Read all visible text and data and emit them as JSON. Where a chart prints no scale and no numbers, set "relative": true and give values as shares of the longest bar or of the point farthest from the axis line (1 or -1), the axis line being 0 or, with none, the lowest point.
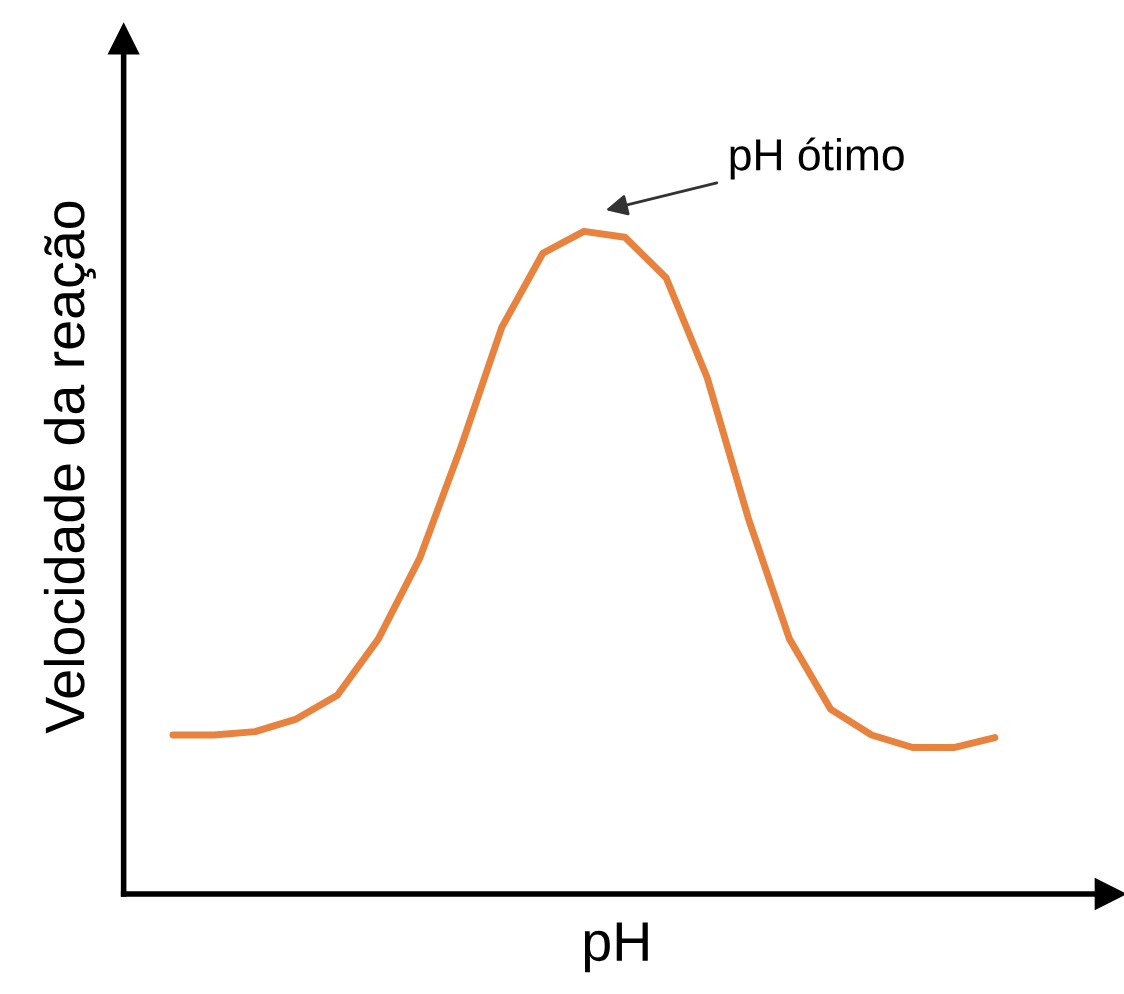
{
  "chart_data": {
    "type": "line",
    "relative": true,
    "xlabel": "pH",
    "ylabel": "Velocidade da reação",
    "categories": [
      null,
      null,
      null,
      null,
      null,
      null,
      null,
      null,
      null,
      null,
      null,
      null,
      null,
      null,
      null,
      null,
      null,
      null,
      null,
      null,
      null
    ],
    "series": [
      {
        "color": "#e8823f",
        "values": [
          0.24,
          0.24,
          0.245,
          0.264,
          0.3,
          0.385,
          0.506,
          0.673,
          0.855,
          0.967,
          1,
          0.991,
          0.93,
          0.779,
          0.567,
          0.385,
          0.279,
          0.24,
          0.221,
          0.221,
          0.236
        ]
      }
    ],
    "annotations": [
      "pH ótimo"
    ],
    "grid": false,
    "legend": false,
    "marker": "none",
    "line_style": "solid"
  }
}
